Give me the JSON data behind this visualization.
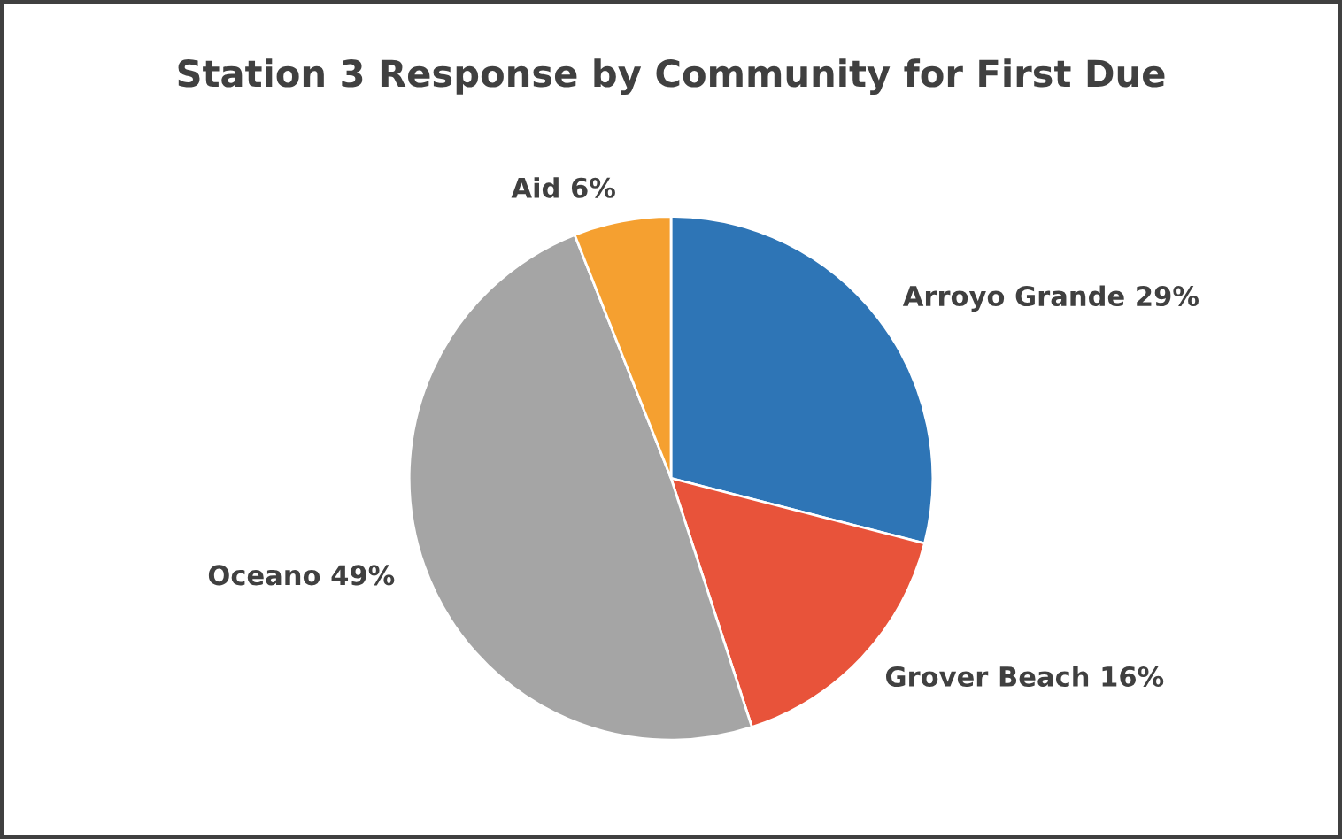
{
  "chart_data": {
    "type": "pie",
    "title": "Station 3 Response by Community for First Due",
    "categories": [
      "Arroyo Grande",
      "Grover Beach",
      "Oceano",
      "Aid"
    ],
    "values": [
      29,
      16,
      49,
      6
    ],
    "value_labels": [
      "29%",
      "16%",
      "49%",
      "6%"
    ],
    "colors": [
      "#2e75b6",
      "#e8533a",
      "#a5a5a5",
      "#f5a030"
    ],
    "legend": false
  }
}
